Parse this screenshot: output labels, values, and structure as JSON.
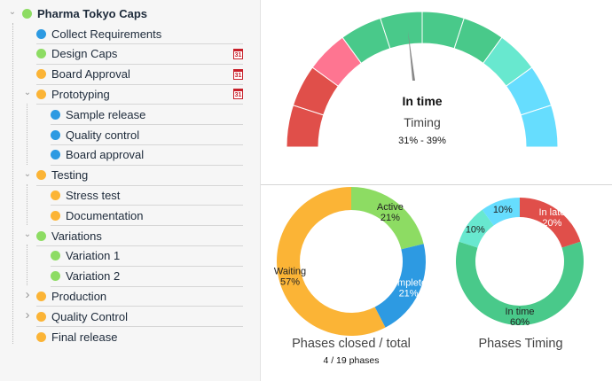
{
  "tree": {
    "root": {
      "label": "Pharma Tokyo Caps",
      "color": "#8ddc63",
      "expanded": true
    },
    "items": [
      {
        "label": "Collect Requirements",
        "color": "#2d9ae2",
        "level": 1,
        "calendar": false
      },
      {
        "label": "Design Caps",
        "color": "#8ddc63",
        "level": 1,
        "calendar": true
      },
      {
        "label": "Board Approval",
        "color": "#fbb436",
        "level": 1,
        "calendar": true
      },
      {
        "label": "Prototyping",
        "color": "#fbb436",
        "level": 1,
        "calendar": true,
        "chevron": "down"
      },
      {
        "label": "Sample release",
        "color": "#2d9ae2",
        "level": 2
      },
      {
        "label": "Quality control",
        "color": "#2d9ae2",
        "level": 2
      },
      {
        "label": "Board approval",
        "color": "#2d9ae2",
        "level": 2
      },
      {
        "label": "Testing",
        "color": "#fbb436",
        "level": 1,
        "chevron": "down"
      },
      {
        "label": "Stress test",
        "color": "#fbb436",
        "level": 2
      },
      {
        "label": "Documentation",
        "color": "#fbb436",
        "level": 2
      },
      {
        "label": "Variations",
        "color": "#8ddc63",
        "level": 1,
        "chevron": "down"
      },
      {
        "label": "Variation 1",
        "color": "#8ddc63",
        "level": 2
      },
      {
        "label": "Variation 2",
        "color": "#8ddc63",
        "level": 2
      },
      {
        "label": "Production",
        "color": "#fbb436",
        "level": 1,
        "chevron": "right"
      },
      {
        "label": "Quality Control",
        "color": "#fbb436",
        "level": 1,
        "chevron": "right"
      },
      {
        "label": "Final release",
        "color": "#fbb436",
        "level": 1
      }
    ],
    "calendar_label": "31"
  },
  "gauge": {
    "status": "In time",
    "title": "Timing",
    "range": "31% - 39%",
    "segments": [
      "#e04f4a",
      "#e04f4a",
      "#fe7591",
      "#49c98a",
      "#49c98a",
      "#49c98a",
      "#49c98a",
      "#68e8cf",
      "#66ddfe",
      "#66ddfe"
    ]
  },
  "closed_chart": {
    "title": "Phases closed / total",
    "subtitle": "4 / 19 phases",
    "slices": [
      {
        "label": "Active",
        "value": 21,
        "color": "#8ddc63",
        "text": "21%"
      },
      {
        "label": "Completed",
        "value": 21,
        "color": "#2d9ae2",
        "text": "21%"
      },
      {
        "label": "Waiting",
        "value": 57,
        "color": "#fbb436",
        "text": "57%"
      }
    ]
  },
  "timing_chart": {
    "title": "Phases Timing",
    "slices": [
      {
        "label": "In late",
        "value": 20,
        "color": "#e04f4a",
        "text": "20%"
      },
      {
        "label": "In time",
        "value": 60,
        "color": "#49c98a",
        "text": "60%"
      },
      {
        "label": "",
        "value": 10,
        "color": "#68e8cf",
        "text": "10%"
      },
      {
        "label": "",
        "value": 10,
        "color": "#66ddfe",
        "text": "10%"
      }
    ]
  }
}
